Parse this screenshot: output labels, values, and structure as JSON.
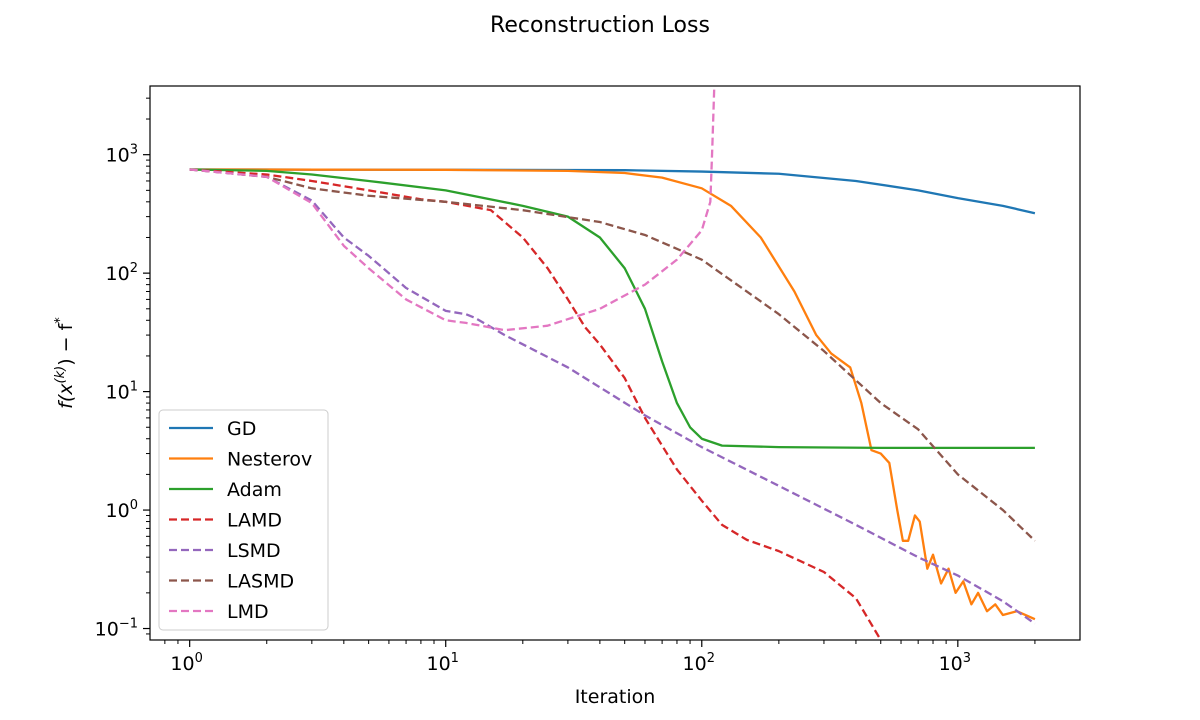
{
  "chart_data": {
    "type": "line",
    "title": "Reconstruction Loss",
    "xlabel": "Iteration",
    "ylabel_parts": {
      "base": "f(x",
      "sup": "(k)",
      "mid": ") − f",
      "star": "*"
    },
    "xscale": "log",
    "yscale": "log",
    "xlim": [
      0.7,
      3000
    ],
    "ylim": [
      0.08,
      3800
    ],
    "xticks": [
      {
        "value": 1,
        "base": "10",
        "exp": "0"
      },
      {
        "value": 10,
        "base": "10",
        "exp": "1"
      },
      {
        "value": 100,
        "base": "10",
        "exp": "2"
      },
      {
        "value": 1000,
        "base": "10",
        "exp": "3"
      }
    ],
    "yticks": [
      {
        "value": 0.1,
        "base": "10",
        "exp": "−1"
      },
      {
        "value": 1,
        "base": "10",
        "exp": "0"
      },
      {
        "value": 10,
        "base": "10",
        "exp": "1"
      },
      {
        "value": 100,
        "base": "10",
        "exp": "2"
      },
      {
        "value": 1000,
        "base": "10",
        "exp": "3"
      }
    ],
    "legend_position": "lower-left",
    "series": [
      {
        "name": "GD",
        "color": "#1f77b4",
        "dash": false,
        "points": [
          [
            1,
            750
          ],
          [
            10,
            745
          ],
          [
            50,
            740
          ],
          [
            100,
            720
          ],
          [
            200,
            690
          ],
          [
            400,
            600
          ],
          [
            700,
            500
          ],
          [
            1000,
            430
          ],
          [
            1500,
            370
          ],
          [
            2000,
            320
          ]
        ]
      },
      {
        "name": "Nesterov",
        "color": "#ff7f0e",
        "dash": false,
        "points": [
          [
            1,
            750
          ],
          [
            10,
            745
          ],
          [
            30,
            730
          ],
          [
            50,
            700
          ],
          [
            70,
            640
          ],
          [
            100,
            520
          ],
          [
            130,
            370
          ],
          [
            170,
            200
          ],
          [
            230,
            70
          ],
          [
            280,
            30
          ],
          [
            320,
            21
          ],
          [
            380,
            16
          ],
          [
            420,
            8
          ],
          [
            460,
            3.2
          ],
          [
            500,
            3
          ],
          [
            540,
            2.5
          ],
          [
            580,
            1.0
          ],
          [
            610,
            0.55
          ],
          [
            640,
            0.55
          ],
          [
            680,
            0.9
          ],
          [
            710,
            0.8
          ],
          [
            760,
            0.32
          ],
          [
            800,
            0.42
          ],
          [
            860,
            0.24
          ],
          [
            920,
            0.32
          ],
          [
            980,
            0.2
          ],
          [
            1050,
            0.25
          ],
          [
            1130,
            0.16
          ],
          [
            1200,
            0.2
          ],
          [
            1300,
            0.14
          ],
          [
            1400,
            0.16
          ],
          [
            1500,
            0.13
          ],
          [
            1700,
            0.14
          ],
          [
            2000,
            0.12
          ]
        ]
      },
      {
        "name": "Adam",
        "color": "#2ca02c",
        "dash": false,
        "points": [
          [
            1,
            750
          ],
          [
            2,
            730
          ],
          [
            3,
            680
          ],
          [
            5,
            600
          ],
          [
            10,
            500
          ],
          [
            20,
            370
          ],
          [
            30,
            300
          ],
          [
            40,
            200
          ],
          [
            50,
            110
          ],
          [
            60,
            50
          ],
          [
            70,
            18
          ],
          [
            80,
            8
          ],
          [
            90,
            5
          ],
          [
            100,
            4
          ],
          [
            120,
            3.5
          ],
          [
            200,
            3.4
          ],
          [
            500,
            3.35
          ],
          [
            1000,
            3.35
          ],
          [
            2000,
            3.35
          ]
        ]
      },
      {
        "name": "LAMD",
        "color": "#d62728",
        "dash": true,
        "points": [
          [
            1,
            750
          ],
          [
            2,
            680
          ],
          [
            3,
            600
          ],
          [
            5,
            500
          ],
          [
            8,
            420
          ],
          [
            10,
            400
          ],
          [
            15,
            340
          ],
          [
            20,
            200
          ],
          [
            25,
            110
          ],
          [
            30,
            60
          ],
          [
            35,
            35
          ],
          [
            40,
            25
          ],
          [
            50,
            13
          ],
          [
            60,
            6
          ],
          [
            70,
            3.5
          ],
          [
            80,
            2.2
          ],
          [
            100,
            1.2
          ],
          [
            120,
            0.75
          ],
          [
            150,
            0.56
          ],
          [
            200,
            0.45
          ],
          [
            300,
            0.3
          ],
          [
            400,
            0.18
          ],
          [
            500,
            0.08
          ]
        ]
      },
      {
        "name": "LSMD",
        "color": "#9467bd",
        "dash": true,
        "points": [
          [
            1,
            750
          ],
          [
            2,
            650
          ],
          [
            3,
            410
          ],
          [
            4,
            200
          ],
          [
            5,
            140
          ],
          [
            7,
            75
          ],
          [
            10,
            48
          ],
          [
            12,
            45
          ],
          [
            13,
            42
          ],
          [
            17,
            30
          ],
          [
            30,
            16
          ],
          [
            60,
            6.3
          ],
          [
            100,
            3.4
          ],
          [
            200,
            1.6
          ],
          [
            400,
            0.75
          ],
          [
            700,
            0.4
          ],
          [
            1000,
            0.28
          ],
          [
            1500,
            0.17
          ],
          [
            2000,
            0.11
          ]
        ]
      },
      {
        "name": "LASMD",
        "color": "#8c564b",
        "dash": true,
        "points": [
          [
            1,
            750
          ],
          [
            2,
            650
          ],
          [
            3,
            520
          ],
          [
            5,
            450
          ],
          [
            10,
            400
          ],
          [
            20,
            340
          ],
          [
            40,
            270
          ],
          [
            60,
            210
          ],
          [
            100,
            130
          ],
          [
            200,
            45
          ],
          [
            300,
            22
          ],
          [
            500,
            8
          ],
          [
            700,
            4.8
          ],
          [
            1000,
            2.0
          ],
          [
            1500,
            1.0
          ],
          [
            2000,
            0.55
          ]
        ]
      },
      {
        "name": "LMD",
        "color": "#e377c2",
        "dash": true,
        "points": [
          [
            1,
            750
          ],
          [
            2,
            650
          ],
          [
            3,
            390
          ],
          [
            4,
            170
          ],
          [
            5,
            110
          ],
          [
            7,
            60
          ],
          [
            10,
            40
          ],
          [
            12,
            38
          ],
          [
            17,
            33
          ],
          [
            25,
            36
          ],
          [
            40,
            50
          ],
          [
            60,
            80
          ],
          [
            80,
            130
          ],
          [
            100,
            230
          ],
          [
            108,
            400
          ],
          [
            110,
            1200
          ],
          [
            112,
            4000
          ]
        ]
      }
    ]
  }
}
